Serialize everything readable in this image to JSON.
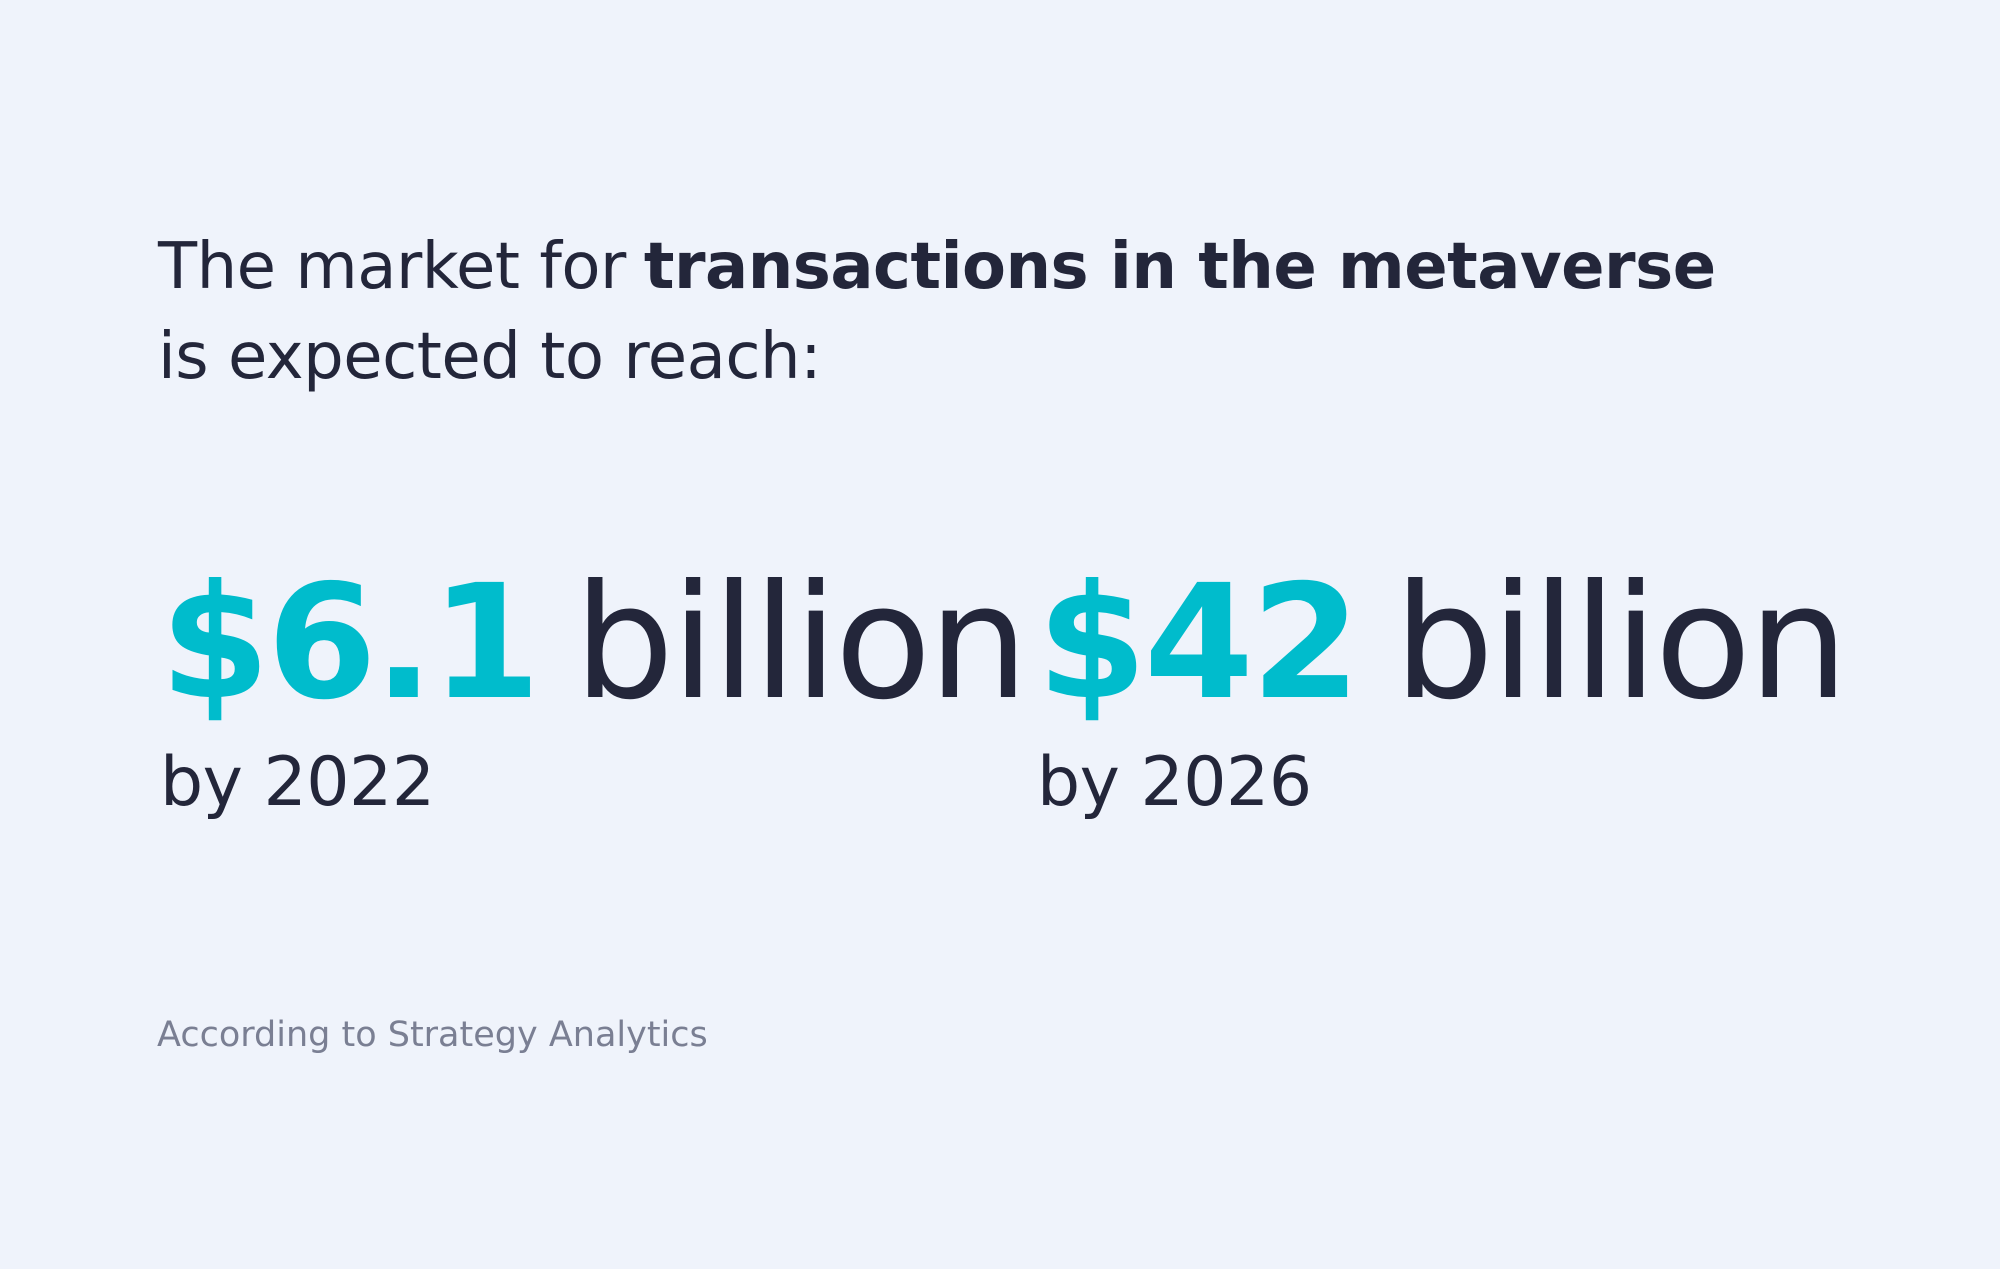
{
  "headline": {
    "lead": "The market for",
    "emphasis": "transactions in the metaverse",
    "tail": "is expected to reach:"
  },
  "stats": [
    {
      "amount": "$6.1",
      "unit": "billion",
      "year": "by 2022"
    },
    {
      "amount": "$42",
      "unit": "billion",
      "year": "by 2026"
    }
  ],
  "source": "According to Strategy Analytics"
}
